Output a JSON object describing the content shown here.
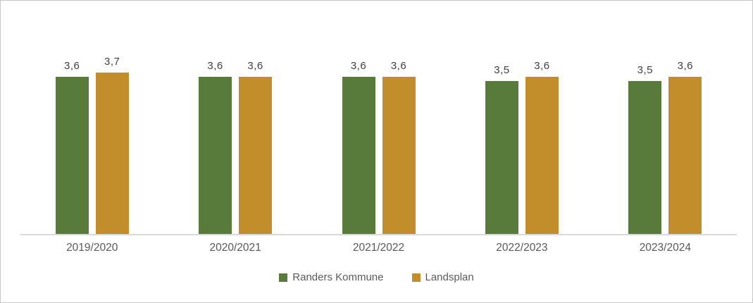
{
  "chart": {
    "background": "#ffffff",
    "frame_border_color": "#c6c6c6",
    "axis_line_color": "#d9d9d9",
    "data_label_color": "#404040",
    "category_label_color": "#595959",
    "legend_text_color": "#595959",
    "decimal_separator": ","
  },
  "chart_data": {
    "type": "bar",
    "title": "",
    "xlabel": "",
    "ylabel": "",
    "grid": false,
    "legend_position": "bottom",
    "ylim": [
      0,
      4.7
    ],
    "categories": [
      "2019/2020",
      "2020/2021",
      "2021/2022",
      "2022/2023",
      "2023/2024"
    ],
    "series": [
      {
        "name": "Randers Kommune",
        "color": "#587a3b",
        "values": [
          3.6,
          3.6,
          3.6,
          3.5,
          3.5
        ],
        "labels": [
          "3,6",
          "3,6",
          "3,6",
          "3,5",
          "3,5"
        ]
      },
      {
        "name": "Landsplan",
        "color": "#c28d2b",
        "values": [
          3.7,
          3.6,
          3.6,
          3.6,
          3.6
        ],
        "labels": [
          "3,7",
          "3,6",
          "3,6",
          "3,6",
          "3,6"
        ]
      }
    ]
  }
}
